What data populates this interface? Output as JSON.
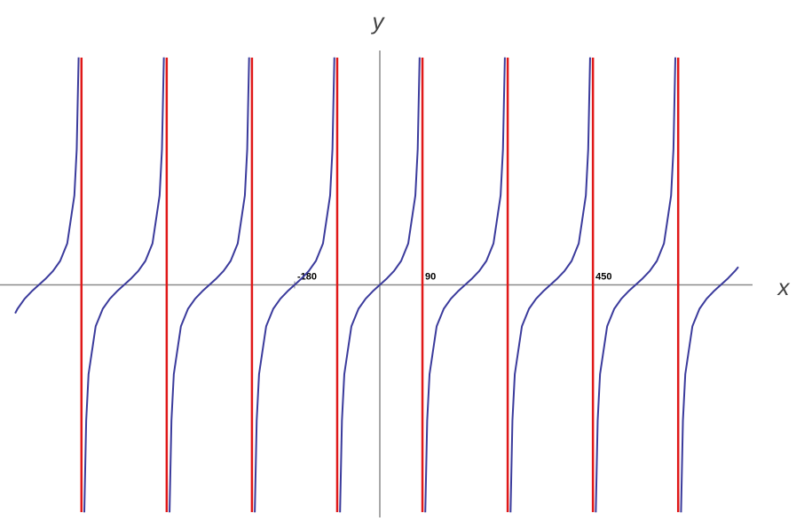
{
  "chart_data": {
    "type": "line",
    "x_label": "x",
    "y_label": "y",
    "x": [
      -770,
      -765,
      -750,
      -735,
      -720,
      -705,
      -690,
      -675,
      -660,
      -645,
      -640,
      -636,
      null,
      -624,
      -620,
      -615,
      -600,
      -585,
      -570,
      -555,
      -540,
      -525,
      -510,
      -495,
      -480,
      -465,
      -460,
      -456,
      null,
      -444,
      -440,
      -435,
      -420,
      -405,
      -390,
      -375,
      -360,
      -345,
      -330,
      -315,
      -300,
      -285,
      -280,
      -276,
      null,
      -264,
      -260,
      -255,
      -240,
      -225,
      -210,
      -195,
      -180,
      -165,
      -150,
      -135,
      -120,
      -105,
      -100,
      -96,
      null,
      -84,
      -80,
      -75,
      -60,
      -45,
      -30,
      -15,
      0,
      15,
      30,
      45,
      60,
      75,
      80,
      84,
      null,
      96,
      100,
      105,
      120,
      135,
      150,
      165,
      180,
      195,
      210,
      225,
      240,
      255,
      260,
      264,
      null,
      276,
      280,
      285,
      300,
      315,
      330,
      345,
      360,
      375,
      390,
      405,
      420,
      435,
      440,
      444,
      null,
      456,
      460,
      465,
      480,
      495,
      510,
      525,
      540,
      555,
      570,
      585,
      600,
      615,
      620,
      624,
      null,
      636,
      640,
      645,
      660,
      675,
      690,
      705,
      720,
      735,
      750,
      757
    ],
    "series": [
      {
        "color": "#3b3b9c",
        "values": [
          -1.19,
          -1,
          -0.58,
          -0.27,
          0,
          0.27,
          0.58,
          1,
          1.73,
          3.73,
          5.67,
          9.51,
          null,
          -9.51,
          -5.67,
          -3.73,
          -1.73,
          -1,
          -0.58,
          -0.27,
          0,
          0.27,
          0.58,
          1,
          1.73,
          3.73,
          5.67,
          9.51,
          null,
          -9.51,
          -5.67,
          -3.73,
          -1.73,
          -1,
          -0.58,
          -0.27,
          0,
          0.27,
          0.58,
          1,
          1.73,
          3.73,
          5.67,
          9.51,
          null,
          -9.51,
          -5.67,
          -3.73,
          -1.73,
          -1,
          -0.58,
          -0.27,
          0,
          0.27,
          0.58,
          1,
          1.73,
          3.73,
          5.67,
          9.51,
          null,
          -9.51,
          -5.67,
          -3.73,
          -1.73,
          -1,
          -0.58,
          -0.27,
          0,
          0.27,
          0.58,
          1,
          1.73,
          3.73,
          5.67,
          9.51,
          null,
          -9.51,
          -5.67,
          -3.73,
          -1.73,
          -1,
          -0.58,
          -0.27,
          0,
          0.27,
          0.58,
          1,
          1.73,
          3.73,
          5.67,
          9.51,
          null,
          -9.51,
          -5.67,
          -3.73,
          -1.73,
          -1,
          -0.58,
          -0.27,
          0,
          0.27,
          0.58,
          1,
          1.73,
          3.73,
          5.67,
          9.51,
          null,
          -9.51,
          -5.67,
          -3.73,
          -1.73,
          -1,
          -0.58,
          -0.27,
          0,
          0.27,
          0.58,
          1,
          1.73,
          3.73,
          5.67,
          9.51,
          null,
          -9.51,
          -5.67,
          -3.73,
          -1.73,
          -1,
          -0.58,
          -0.27,
          0,
          0.27,
          0.58,
          0.75
        ]
      }
    ],
    "asymptotes": [
      -630,
      -450,
      -270,
      -90,
      90,
      270,
      450,
      630
    ],
    "asymptote_color": "#e01818",
    "xlim": [
      -802,
      787
    ],
    "ylim": [
      -9.5,
      9.5
    ],
    "xticks": [
      -180,
      90,
      450
    ]
  }
}
